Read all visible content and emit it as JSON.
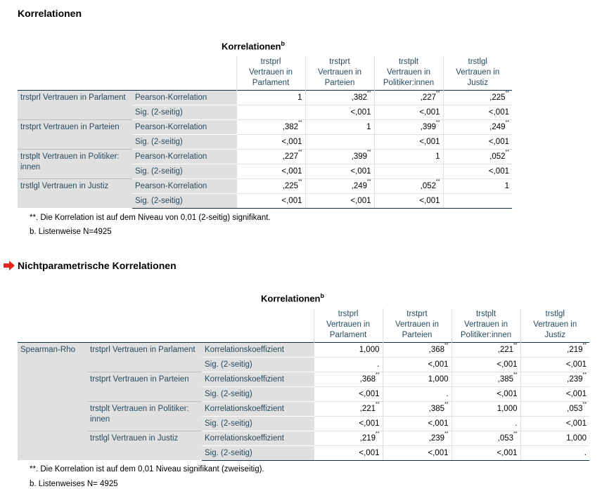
{
  "sections": {
    "s1_title": "Korrelationen",
    "s2_title": "Nichtparametrische Korrelationen"
  },
  "table1": {
    "title": "Korrelationen",
    "title_sup": "b",
    "columns": [
      {
        "line1": "trstprl",
        "line2": "Vertrauen in",
        "line3": "Parlament"
      },
      {
        "line1": "trstprt",
        "line2": "Vertrauen in",
        "line3": "Parteien"
      },
      {
        "line1": "trstplt",
        "line2": "Vertrauen in",
        "line3": "Politiker:innen"
      },
      {
        "line1": "trstlgl",
        "line2": "Vertrauen in",
        "line3": "Justiz"
      }
    ],
    "rows": [
      {
        "label": "trstprl Vertrauen in Parlament",
        "r_label": "Pearson-Korrelation",
        "r": [
          "1",
          ",382",
          ",227",
          ",225"
        ],
        "r_sig": [
          "",
          "**",
          "**",
          "**"
        ],
        "p_label": "Sig. (2-seitig)",
        "p": [
          "",
          "<,001",
          "<,001",
          "<,001"
        ]
      },
      {
        "label": "trstprt Vertrauen in Parteien",
        "r_label": "Pearson-Korrelation",
        "r": [
          ",382",
          "1",
          ",399",
          ",249"
        ],
        "r_sig": [
          "**",
          "",
          "**",
          "**"
        ],
        "p_label": "Sig. (2-seitig)",
        "p": [
          "<,001",
          "",
          "<,001",
          "<,001"
        ]
      },
      {
        "label": "trstplt Vertrauen in Politiker: innen",
        "r_label": "Pearson-Korrelation",
        "r": [
          ",227",
          ",399",
          "1",
          ",052"
        ],
        "r_sig": [
          "**",
          "**",
          "",
          "**"
        ],
        "p_label": "Sig. (2-seitig)",
        "p": [
          "<,001",
          "<,001",
          "",
          "<,001"
        ]
      },
      {
        "label": "trstlgl Vertrauen in Justiz",
        "r_label": "Pearson-Korrelation",
        "r": [
          ",225",
          ",249",
          ",052",
          "1"
        ],
        "r_sig": [
          "**",
          "**",
          "**",
          ""
        ],
        "p_label": "Sig. (2-seitig)",
        "p": [
          "<,001",
          "<,001",
          "<,001",
          ""
        ]
      }
    ],
    "footnote1": "**. Die Korrelation ist auf dem Niveau von 0,01 (2-seitig) signifikant.",
    "footnote2": "b. Listenweise N=4925"
  },
  "table2": {
    "title": "Korrelationen",
    "title_sup": "b",
    "method": "Spearman-Rho",
    "columns": [
      {
        "line1": "trstprl",
        "line2": "Vertrauen in",
        "line3": "Parlament"
      },
      {
        "line1": "trstprt",
        "line2": "Vertrauen in",
        "line3": "Parteien"
      },
      {
        "line1": "trstplt",
        "line2": "Vertrauen in",
        "line3": "Politiker:innen"
      },
      {
        "line1": "trstlgl",
        "line2": "Vertrauen in",
        "line3": "Justiz"
      }
    ],
    "rows": [
      {
        "label": "trstprl Vertrauen in Parlament",
        "r_label": "Korrelationskoeffizient",
        "r": [
          "1,000",
          ",368",
          ",221",
          ",219"
        ],
        "r_sig": [
          "",
          "**",
          "**",
          "**"
        ],
        "p_label": "Sig. (2-seitig)",
        "p": [
          ".",
          "<,001",
          "<,001",
          "<,001"
        ]
      },
      {
        "label": "trstprt Vertrauen in Parteien",
        "r_label": "Korrelationskoeffizient",
        "r": [
          ",368",
          "1,000",
          ",385",
          ",239"
        ],
        "r_sig": [
          "**",
          "",
          "**",
          "**"
        ],
        "p_label": "Sig. (2-seitig)",
        "p": [
          "<,001",
          ".",
          "<,001",
          "<,001"
        ]
      },
      {
        "label": "trstplt Vertrauen in Politiker: innen",
        "r_label": "Korrelationskoeffizient",
        "r": [
          ",221",
          ",385",
          "1,000",
          ",053"
        ],
        "r_sig": [
          "**",
          "**",
          "",
          "**"
        ],
        "p_label": "Sig. (2-seitig)",
        "p": [
          "<,001",
          "<,001",
          ".",
          "<,001"
        ]
      },
      {
        "label": "trstlgl Vertrauen in Justiz",
        "r_label": "Korrelationskoeffizient",
        "r": [
          ",219",
          ",239",
          ",053",
          "1,000"
        ],
        "r_sig": [
          "**",
          "**",
          "**",
          ""
        ],
        "p_label": "Sig. (2-seitig)",
        "p": [
          "<,001",
          "<,001",
          "<,001",
          "."
        ]
      }
    ],
    "footnote1": "**. Die Korrelation ist auf dem 0,01 Niveau signifikant (zweiseitig).",
    "footnote2": "b. Listenweises N= 4925"
  },
  "colors": {
    "arrow": "#e8231c",
    "header_text": "#264a60",
    "row_bg": "#e0e0e0"
  },
  "icons": {
    "section_arrow": "right-arrow-icon"
  }
}
